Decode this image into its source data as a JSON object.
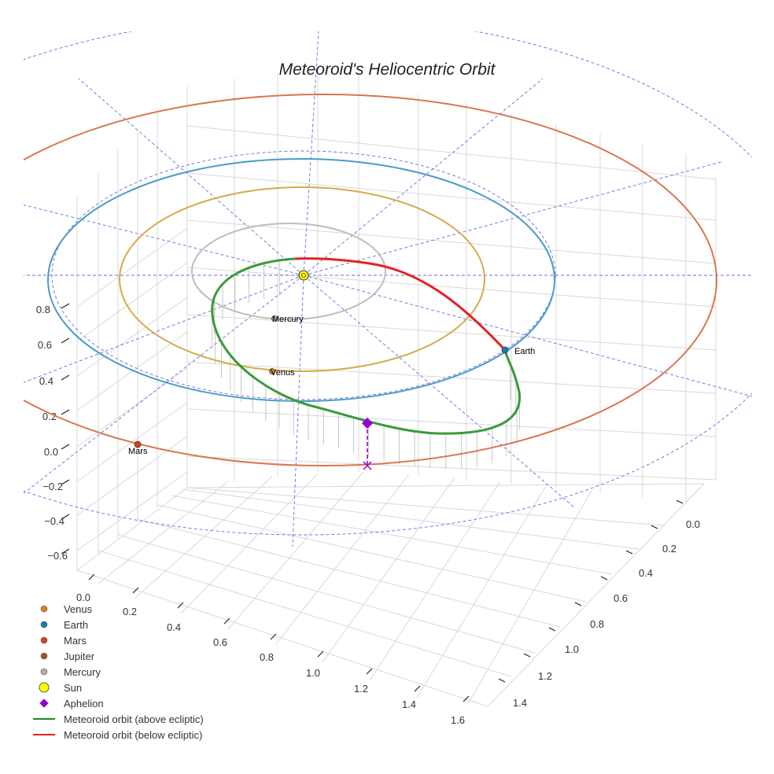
{
  "chart_data": {
    "type": "scatter",
    "title": "Meteoroid's Heliocentric Orbit",
    "projection": "3d",
    "z_ticks": [
      "0.8",
      "0.6",
      "0.4",
      "0.2",
      "0.0",
      "−0.2",
      "−0.4",
      "−0.6"
    ],
    "x_ticks": [
      "0.0",
      "0.2",
      "0.4",
      "0.6",
      "0.8",
      "1.0",
      "1.2",
      "1.4",
      "1.6"
    ],
    "y_ticks": [
      "0.0",
      "0.2",
      "0.4",
      "0.6",
      "0.8",
      "1.0",
      "1.2",
      "1.4"
    ],
    "planets": [
      {
        "name": "Mercury",
        "color": "#b9a7a3",
        "orbit_color": "#c3bbbb"
      },
      {
        "name": "Venus",
        "color": "#d98324",
        "orbit_color": "#d6a94a"
      },
      {
        "name": "Earth",
        "color": "#1f77b4",
        "orbit_color": "#4a9cc7"
      },
      {
        "name": "Mars",
        "color": "#d2421f",
        "orbit_color": "#d9754f"
      }
    ],
    "planet_labels": {
      "mercury": "Mercury",
      "venus": "Venus",
      "earth": "Earth",
      "mars": "Mars"
    },
    "sun": {
      "name": "Sun",
      "color": "#ffff00"
    },
    "aphelion": {
      "name": "Aphelion",
      "color": "#9400d3"
    },
    "meteoroid_orbit": {
      "above_color": "#3a9a3a",
      "below_color": "#e32222"
    },
    "legend": [
      {
        "label": "Venus",
        "color": "#d98324",
        "marker": "circle"
      },
      {
        "label": "Earth",
        "color": "#1f77b4",
        "marker": "circle"
      },
      {
        "label": "Mars",
        "color": "#d2421f",
        "marker": "circle"
      },
      {
        "label": "Jupiter",
        "color": "#a0522d",
        "marker": "circle"
      },
      {
        "label": "Mercury",
        "color": "#bca8a3",
        "marker": "circle"
      },
      {
        "label": "Sun",
        "color": "#ffff00",
        "marker": "big-circle"
      },
      {
        "label": "Aphelion",
        "color": "#9400d3",
        "marker": "diamond"
      },
      {
        "label": "Meteoroid orbit (above ecliptic)",
        "color": "#1a8a1a",
        "marker": "line"
      },
      {
        "label": "Meteoroid orbit (below ecliptic)",
        "color": "#e32222",
        "marker": "line"
      }
    ]
  }
}
